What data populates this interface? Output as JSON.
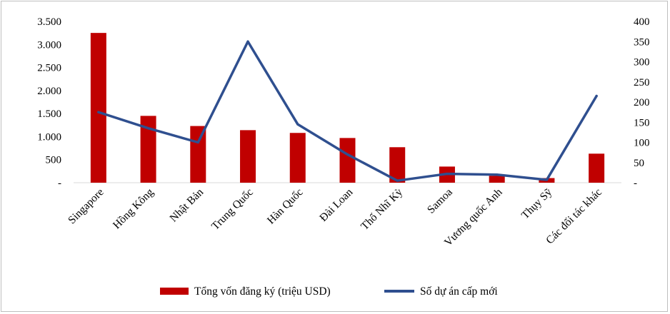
{
  "chart_data": {
    "type": "bar+line",
    "title": "",
    "categories": [
      "Singapore",
      "Hồng Kông",
      "Nhật Bản",
      "Trung Quốc",
      "Hàn Quốc",
      "Đài Loan",
      "Thổ Nhĩ Kỳ",
      "Samoa",
      "Vương quốc Anh",
      "Thụy Sỹ",
      "Các đối tác khác"
    ],
    "series": [
      {
        "name": "Tổng vốn đăng ký (triệu USD)",
        "type": "bar",
        "axis": "left",
        "color": "#C00000",
        "values": [
          3250,
          1450,
          1230,
          1140,
          1080,
          970,
          770,
          350,
          150,
          100,
          630
        ]
      },
      {
        "name": "Số dự án cấp mới",
        "type": "line",
        "axis": "right",
        "color": "#2F4F8F",
        "values": [
          175,
          135,
          100,
          350,
          145,
          70,
          5,
          22,
          20,
          7,
          215
        ]
      }
    ],
    "y_left": {
      "ylim": [
        0,
        3500
      ],
      "ticks": [
        "-",
        "500",
        "1.000",
        "1.500",
        "2.000",
        "2.500",
        "3.000",
        "3.500"
      ]
    },
    "y_right": {
      "ylim": [
        0,
        400
      ],
      "ticks": [
        "-",
        "50",
        "100",
        "150",
        "200",
        "250",
        "300",
        "350",
        "400"
      ]
    },
    "grid": false,
    "legend": "bottom"
  }
}
